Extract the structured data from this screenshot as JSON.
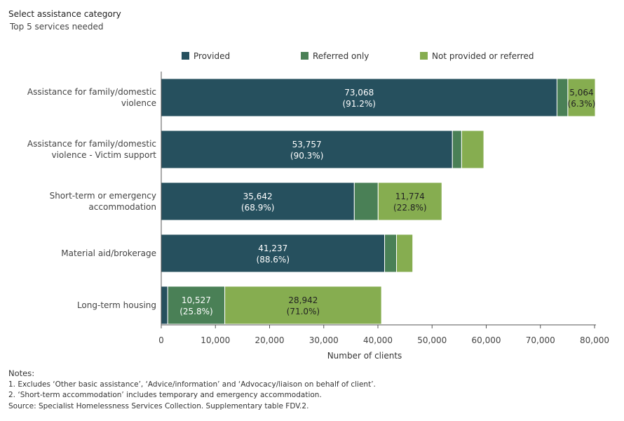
{
  "header": {
    "title": "Select assistance category",
    "subtitle": "Top 5 services needed"
  },
  "colors": {
    "provided": "#26505e",
    "referred_only": "#4a8056",
    "not_provided_or_referred": "#86ad50",
    "axis": "#555555",
    "grid": "#cccccc"
  },
  "chart_data": {
    "type": "bar",
    "orientation": "horizontal",
    "stacked": true,
    "categories": [
      [
        "Assistance for family/domestic",
        "violence"
      ],
      [
        "Assistance for family/domestic",
        "violence - Victim support"
      ],
      [
        "Short-term or emergency",
        "accommodation"
      ],
      [
        "Material aid/brokerage"
      ],
      [
        "Long-term housing"
      ]
    ],
    "series": [
      {
        "name": "Provided",
        "color": "#26505e",
        "values": [
          73068,
          53757,
          35642,
          41237,
          1200
        ],
        "labels": [
          [
            "73,068",
            "(91.2%)"
          ],
          [
            "53,757",
            "(90.3%)"
          ],
          [
            "35,642",
            "(68.9%)"
          ],
          [
            "41,237",
            "(88.6%)"
          ],
          null
        ]
      },
      {
        "name": "Referred only",
        "color": "#4a8056",
        "values": [
          2000,
          1700,
          4400,
          2200,
          10527
        ],
        "labels": [
          null,
          null,
          null,
          null,
          [
            "10,527",
            "(25.8%)"
          ]
        ]
      },
      {
        "name": "Not provided or referred",
        "color": "#86ad50",
        "values": [
          5064,
          4100,
          11774,
          3000,
          28942
        ],
        "labels": [
          [
            "5,064",
            "(6.3%)"
          ],
          null,
          [
            "11,774",
            "(22.8%)"
          ],
          null,
          [
            "28,942",
            "(71.0%)"
          ]
        ]
      }
    ],
    "xlabel": "Number of clients",
    "xlim": [
      0,
      80000
    ],
    "xticks": [
      0,
      10000,
      20000,
      30000,
      40000,
      50000,
      60000,
      70000,
      80000
    ],
    "xtick_labels": [
      "0",
      "10,000",
      "20,000",
      "30,000",
      "40,000",
      "50,000",
      "60,000",
      "70,000",
      "80,000"
    ],
    "grid": false,
    "legend_position": "top"
  },
  "notes": {
    "heading": "Notes:",
    "lines": [
      "1. Excludes ‘Other basic assistance’, ‘Advice/information’ and ‘Advocacy/liaison on behalf of client’.",
      "2. ‘Short-term accommodation’ includes temporary and emergency accommodation.",
      "Source: Specialist Homelessness Services Collection. Supplementary table FDV.2."
    ]
  }
}
